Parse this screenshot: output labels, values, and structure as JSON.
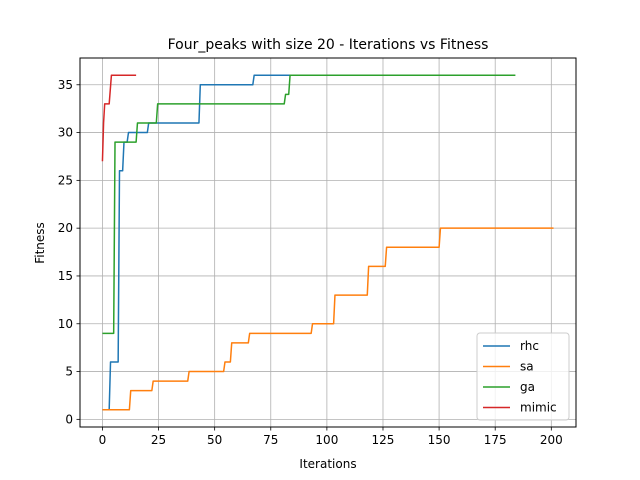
{
  "chart_data": {
    "type": "line",
    "title": "Four_peaks with size 20 - Iterations vs Fitness",
    "xlabel": "Iterations",
    "ylabel": "Fitness",
    "xlim": [
      -10,
      211
    ],
    "ylim": [
      -0.8,
      37.8
    ],
    "xticks": [
      0,
      25,
      50,
      75,
      100,
      125,
      150,
      175,
      200
    ],
    "yticks": [
      0,
      5,
      10,
      15,
      20,
      25,
      30,
      35
    ],
    "grid": true,
    "legend_position": "lower-right",
    "series": [
      {
        "name": "rhc",
        "color": "#1f77b4",
        "x": [
          0,
          3,
          3.6,
          4,
          7,
          7.6,
          8,
          9,
          9.6,
          10,
          11,
          11.6,
          12,
          20,
          20.6,
          21,
          43,
          43.6,
          44,
          67,
          67.6,
          68,
          118
        ],
        "y": [
          1,
          1,
          6,
          6,
          6,
          26,
          26,
          26,
          29,
          29,
          29,
          30,
          30,
          30,
          31,
          31,
          31,
          35,
          35,
          35,
          36,
          36,
          36
        ]
      },
      {
        "name": "sa",
        "color": "#ff7f0e",
        "x": [
          0,
          12,
          12.6,
          13,
          22,
          22.6,
          23,
          38,
          38.6,
          39,
          54,
          54.6,
          55,
          57,
          57.6,
          58,
          65,
          65.6,
          66,
          93,
          93.6,
          94,
          103,
          103.6,
          104,
          118,
          118.6,
          119,
          126,
          126.6,
          127,
          150,
          150.6,
          151,
          201
        ],
        "y": [
          1,
          1,
          3,
          3,
          3,
          4,
          4,
          4,
          5,
          5,
          5,
          6,
          6,
          6,
          8,
          8,
          8,
          9,
          9,
          9,
          10,
          10,
          10,
          13,
          13,
          13,
          16,
          16,
          16,
          18,
          18,
          18,
          20,
          20,
          20
        ]
      },
      {
        "name": "ga",
        "color": "#2ca02c",
        "x": [
          0,
          5,
          5.6,
          6,
          15,
          15.6,
          16,
          24,
          24.6,
          25,
          81,
          81.6,
          82,
          83,
          83.6,
          84,
          184
        ],
        "y": [
          9,
          9,
          29,
          29,
          29,
          31,
          31,
          31,
          33,
          33,
          33,
          34,
          34,
          34,
          36,
          36,
          36
        ]
      },
      {
        "name": "mimic",
        "color": "#d62728",
        "x": [
          0,
          0.5,
          1,
          2,
          3,
          4,
          5,
          15
        ],
        "y": [
          27,
          31,
          33,
          33,
          33,
          36,
          36,
          36
        ]
      }
    ]
  }
}
